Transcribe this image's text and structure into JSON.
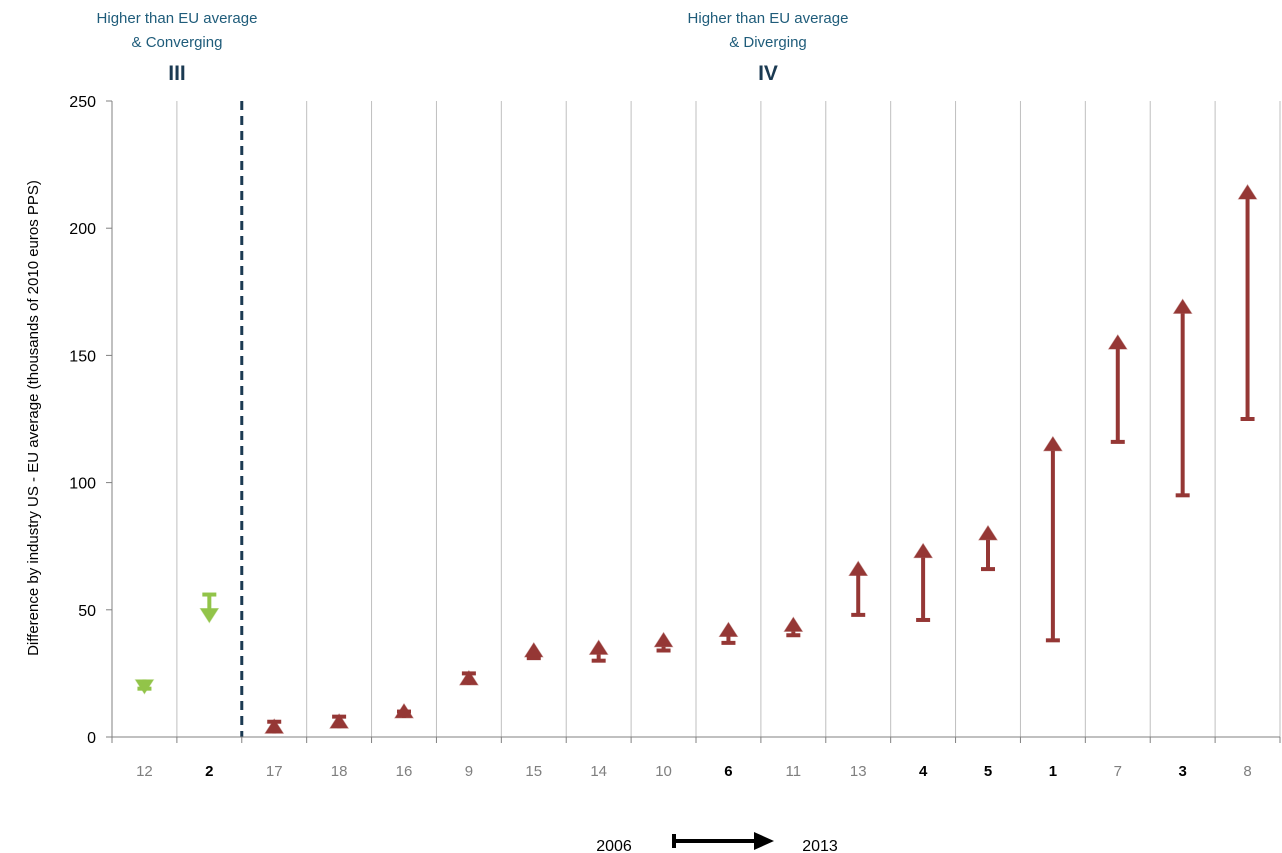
{
  "chart_data": {
    "type": "range-arrow",
    "ylabel": "Difference by industry US - EU average (thousands of 2010 euros PPS)",
    "ylim": [
      0,
      250
    ],
    "yticks": [
      0,
      50,
      100,
      150,
      200,
      250
    ],
    "grid": "vertical",
    "categories": [
      "12",
      "2",
      "17",
      "18",
      "16",
      "9",
      "15",
      "14",
      "10",
      "6",
      "11",
      "13",
      "4",
      "5",
      "1",
      "7",
      "3",
      "8"
    ],
    "bold_categories": [
      "2",
      "6",
      "4",
      "5",
      "1",
      "3"
    ],
    "start_2006": [
      19,
      56,
      6,
      8,
      10,
      25,
      31,
      30,
      34,
      37,
      40,
      48,
      46,
      66,
      38,
      116,
      95,
      125
    ],
    "end_2013": [
      17,
      45,
      7,
      9,
      13,
      26,
      37,
      38,
      41,
      45,
      47,
      69,
      76,
      83,
      118,
      158,
      172,
      217
    ],
    "quadrants": [
      {
        "title_line1": "Higher than EU average",
        "title_line2": "& Converging",
        "roman": "III",
        "color": "#92C449"
      },
      {
        "title_line1": "Higher than EU average",
        "title_line2": "& Diverging",
        "roman": "IV",
        "color": "#953735"
      }
    ],
    "quadrant_split_after_index": 1,
    "timeline": {
      "from": "2006",
      "to": "2013"
    }
  }
}
